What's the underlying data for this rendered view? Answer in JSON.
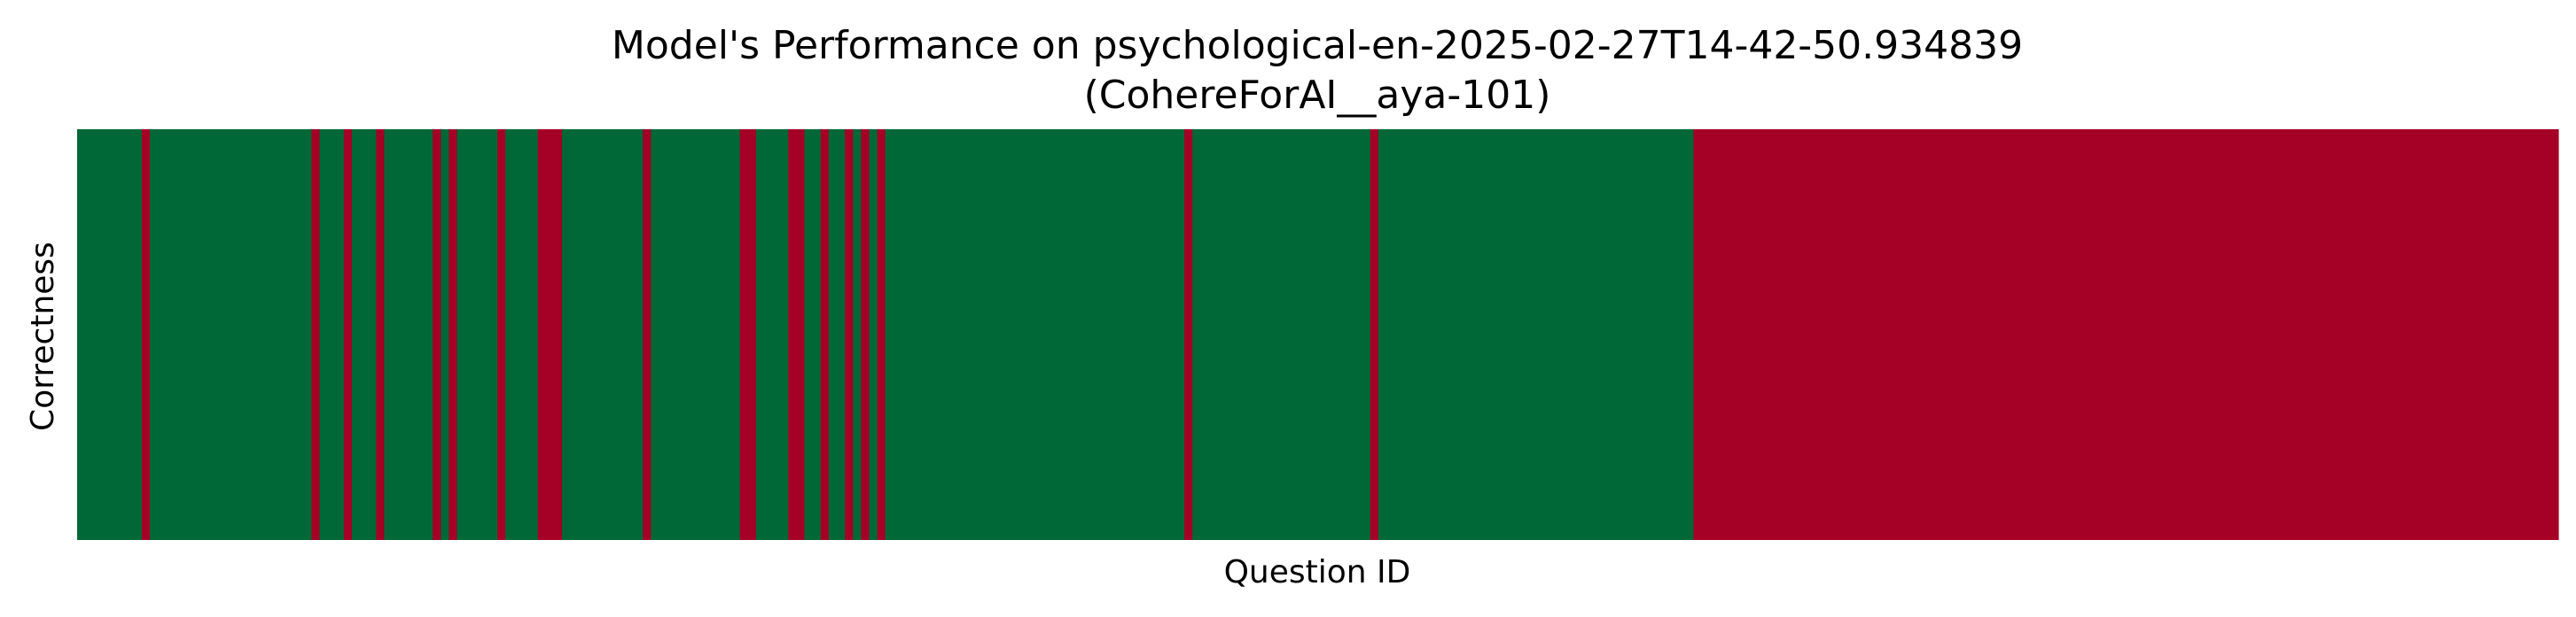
{
  "chart_data": {
    "type": "heatmap",
    "title": "Model's Performance on psychological-en-2025-02-27T14-42-50.934839",
    "subtitle": "(CohereForAI__aya-101)",
    "xlabel": "Question ID",
    "ylabel": "Correctness",
    "colors": {
      "correct": "#006837",
      "incorrect": "#a50026"
    },
    "total_questions": 300,
    "correctness": [
      1,
      1,
      1,
      1,
      1,
      1,
      1,
      1,
      0,
      1,
      1,
      1,
      1,
      1,
      1,
      1,
      1,
      1,
      1,
      1,
      1,
      1,
      1,
      1,
      1,
      1,
      1,
      1,
      1,
      0,
      1,
      1,
      1,
      0,
      1,
      1,
      1,
      0,
      1,
      1,
      1,
      1,
      1,
      1,
      0,
      1,
      0,
      1,
      1,
      1,
      1,
      1,
      0,
      1,
      1,
      1,
      1,
      0,
      0,
      0,
      1,
      1,
      1,
      1,
      1,
      1,
      1,
      1,
      1,
      1,
      0,
      1,
      1,
      1,
      1,
      1,
      1,
      1,
      1,
      1,
      1,
      1,
      0,
      0,
      1,
      1,
      1,
      1,
      0,
      0,
      1,
      1,
      0,
      1,
      1,
      0,
      1,
      0,
      1,
      0,
      1,
      1,
      1,
      1,
      1,
      1,
      1,
      1,
      1,
      1,
      1,
      1,
      1,
      1,
      1,
      1,
      1,
      1,
      1,
      1,
      1,
      1,
      1,
      1,
      1,
      1,
      1,
      1,
      1,
      1,
      1,
      1,
      1,
      1,
      1,
      1,
      1,
      0,
      1,
      1,
      1,
      1,
      1,
      1,
      1,
      1,
      1,
      1,
      1,
      1,
      1,
      1,
      1,
      1,
      1,
      1,
      1,
      1,
      1,
      1,
      0,
      1,
      1,
      1,
      1,
      1,
      1,
      1,
      1,
      1,
      1,
      1,
      1,
      1,
      1,
      1,
      1,
      1,
      1,
      1,
      1,
      1,
      1,
      1,
      1,
      1,
      1,
      1,
      1,
      1,
      1,
      1,
      1,
      1,
      1,
      1,
      1,
      1,
      1,
      1,
      0,
      0,
      0,
      0,
      0,
      0,
      0,
      0,
      0,
      0,
      0,
      0,
      0,
      0,
      0,
      0,
      0,
      0,
      0,
      0,
      0,
      0,
      0,
      0,
      0,
      0,
      0,
      0,
      0,
      0,
      0,
      0,
      0,
      0,
      0,
      0,
      0,
      0,
      0,
      0,
      0,
      0,
      0,
      0,
      0,
      0,
      0,
      0,
      0,
      0,
      0,
      0,
      0,
      0,
      0,
      0,
      0,
      0,
      0,
      0,
      0,
      0,
      0,
      0,
      0,
      0,
      0,
      0,
      0,
      0,
      0,
      0,
      0,
      0,
      0,
      0,
      0,
      0,
      0,
      0,
      0,
      0,
      0,
      0,
      0,
      0,
      0,
      0,
      0,
      0,
      0,
      0,
      0,
      0,
      0,
      0,
      0,
      0,
      0,
      0,
      0,
      0,
      0,
      0,
      0,
      0,
      0
    ],
    "grid": false,
    "legend": "none"
  }
}
